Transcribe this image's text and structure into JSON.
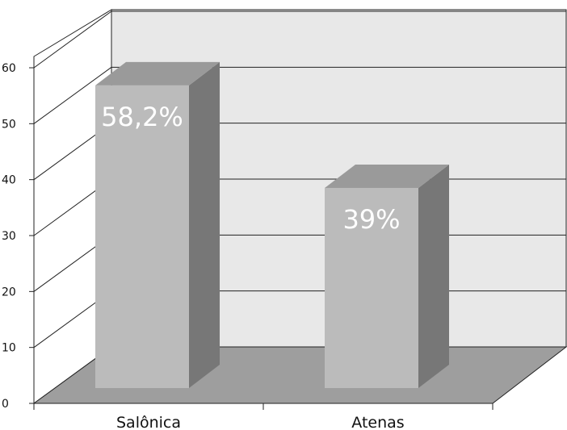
{
  "chart_data": {
    "type": "bar",
    "style": "3d",
    "categories": [
      "Salônica",
      "Atenas"
    ],
    "values": [
      58.2,
      39
    ],
    "data_labels": [
      "58,2%",
      "39%"
    ],
    "y_ticks": [
      "0",
      "10",
      "20",
      "30",
      "40",
      "50",
      "60"
    ],
    "ylim": [
      0,
      60
    ],
    "grid": true,
    "legend": "none",
    "colors": {
      "bar_front": "#bbbbbb",
      "bar_side": "#777777",
      "bar_top": "#9a9a9a",
      "back_wall": "#e8e8e8",
      "floor": "#9e9e9e",
      "gridline": "#222222",
      "data_label": "#ffffff"
    }
  }
}
